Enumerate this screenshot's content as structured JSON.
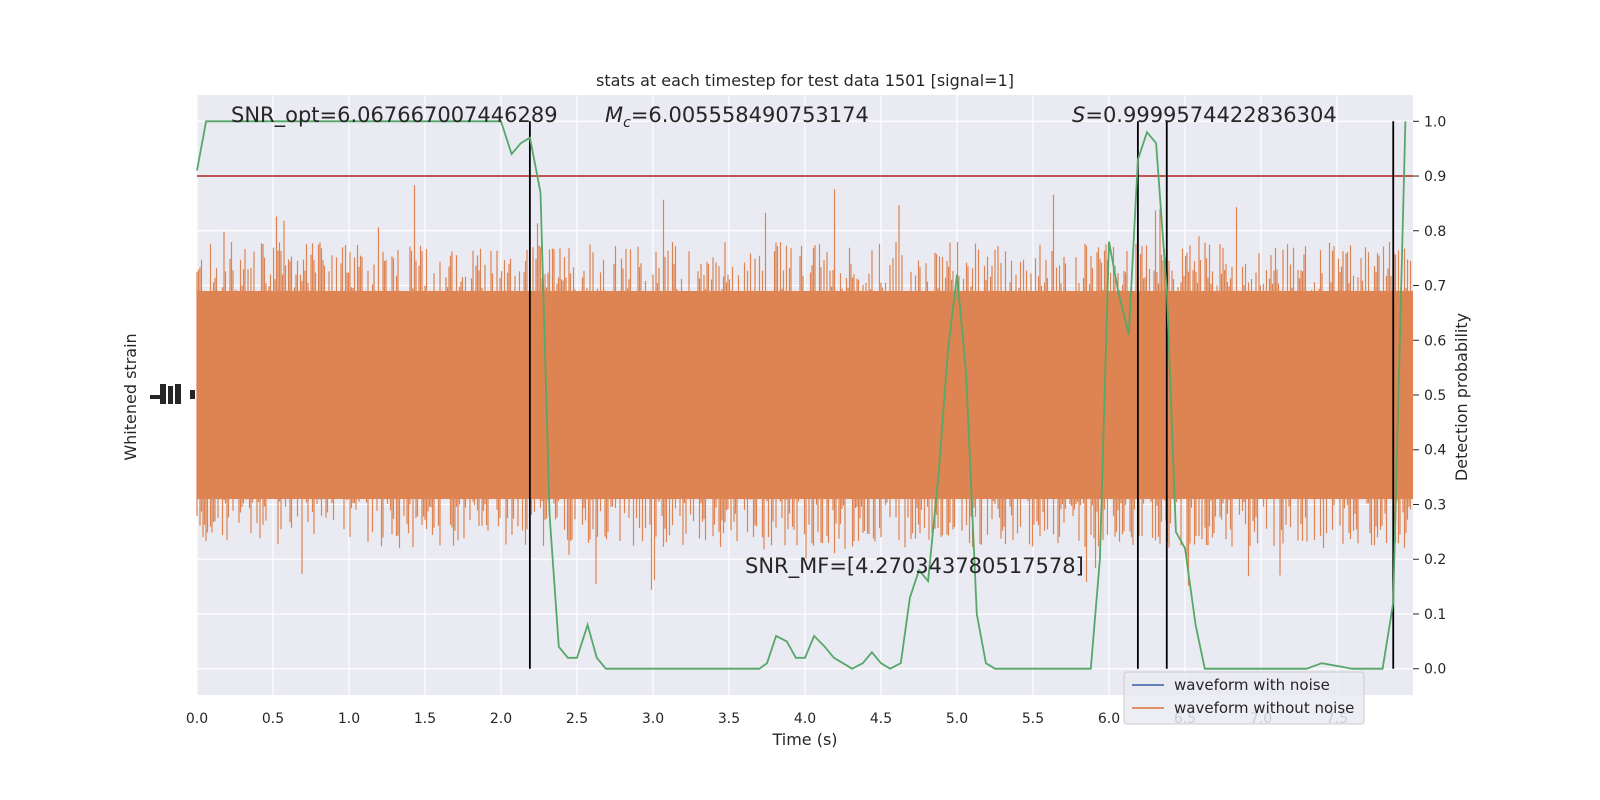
{
  "chart_data": {
    "type": "line",
    "title": "stats at each timestep for test data 1501 [signal=1]",
    "xlabel": "Time (s)",
    "ylabel_left": "Whitened strain",
    "ylabel_right": "Detection probability",
    "xlim": [
      0.0,
      8.0
    ],
    "ylim_right": [
      -0.048,
      1.048
    ],
    "x_ticks": [
      "0.0",
      "0.5",
      "1.0",
      "1.5",
      "2.0",
      "2.5",
      "3.0",
      "3.5",
      "4.0",
      "4.5",
      "5.0",
      "5.5",
      "6.0",
      "6.5",
      "7.0",
      "7.5"
    ],
    "x_tick_values": [
      0.0,
      0.5,
      1.0,
      1.5,
      2.0,
      2.5,
      3.0,
      3.5,
      4.0,
      4.5,
      5.0,
      5.5,
      6.0,
      6.5,
      7.0,
      7.5
    ],
    "y_right_ticks": [
      "0.0",
      "0.1",
      "0.2",
      "0.3",
      "0.4",
      "0.5",
      "0.6",
      "0.7",
      "0.8",
      "0.9",
      "1.0"
    ],
    "y_right_tick_values": [
      0.0,
      0.1,
      0.2,
      0.3,
      0.4,
      0.5,
      0.6,
      0.7,
      0.8,
      0.9,
      1.0
    ],
    "annotations": {
      "snr_opt": "SNR_opt=6.067667007446289",
      "mc_symbol": "M",
      "mc_sub": "c",
      "mc_value": "=6.005558490753174",
      "s_symbol": "S",
      "s_value": "=0.9999574422836304",
      "snr_mf": "SNR_MF=[4.270343780517578]"
    },
    "threshold": 0.9,
    "vertical_lines_x": [
      2.19,
      6.19,
      6.38,
      7.87
    ],
    "series": [
      {
        "name": "waveform with noise",
        "color": "#4c72b0"
      },
      {
        "name": "waveform without noise",
        "color": "#dd8452"
      }
    ],
    "probability": {
      "color": "#55a868",
      "x": [
        0.0,
        0.06,
        2.0,
        2.07,
        2.13,
        2.19,
        2.26,
        2.32,
        2.38,
        2.44,
        2.5,
        2.57,
        2.63,
        2.69,
        2.75,
        3.0,
        3.5,
        3.7,
        3.75,
        3.81,
        3.88,
        3.94,
        4.0,
        4.06,
        4.13,
        4.19,
        4.25,
        4.31,
        4.38,
        4.44,
        4.5,
        4.56,
        4.63,
        4.69,
        4.75,
        4.81,
        4.88,
        4.94,
        5.0,
        5.06,
        5.13,
        5.19,
        5.25,
        5.31,
        5.5,
        5.88,
        5.94,
        6.0,
        6.06,
        6.13,
        6.19,
        6.25,
        6.31,
        6.38,
        6.44,
        6.5,
        6.57,
        6.63,
        6.69,
        6.75,
        6.8,
        7.0,
        7.3,
        7.4,
        7.6,
        7.8,
        7.87,
        7.95
      ],
      "y": [
        0.91,
        1.0,
        1.0,
        0.94,
        0.96,
        0.97,
        0.87,
        0.28,
        0.04,
        0.02,
        0.02,
        0.08,
        0.02,
        0.0,
        0.0,
        0.0,
        0.0,
        0.0,
        0.01,
        0.06,
        0.05,
        0.02,
        0.02,
        0.06,
        0.04,
        0.02,
        0.01,
        0.0,
        0.01,
        0.03,
        0.01,
        0.0,
        0.01,
        0.13,
        0.18,
        0.16,
        0.36,
        0.58,
        0.72,
        0.54,
        0.1,
        0.01,
        0.0,
        0.0,
        0.0,
        0.0,
        0.2,
        0.78,
        0.69,
        0.61,
        0.93,
        0.98,
        0.96,
        0.69,
        0.25,
        0.22,
        0.08,
        0.0,
        0.0,
        0.0,
        0.0,
        0.0,
        0.0,
        0.01,
        0.0,
        0.0,
        0.12,
        1.0
      ]
    }
  }
}
